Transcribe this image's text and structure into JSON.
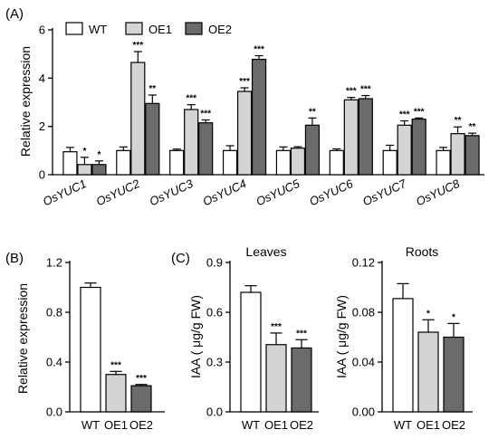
{
  "chart_data": [
    {
      "panel": "(A)",
      "type": "bar",
      "ylabel": "Relative expression",
      "ylim": [
        0,
        6
      ],
      "yticks": [
        "0",
        "2",
        "4",
        "6"
      ],
      "categories": [
        "OsYUC1",
        "OsYUC2",
        "OsYUC3",
        "OsYUC4",
        "OsYUC5",
        "OsYUC6",
        "OsYUC7",
        "OsYUC8"
      ],
      "legend": "top-left",
      "series": [
        {
          "name": "WT",
          "color": "#ffffff",
          "values": [
            0.95,
            1.0,
            1.0,
            1.0,
            1.0,
            1.0,
            1.0,
            1.0
          ],
          "errors": [
            0.18,
            0.15,
            0.06,
            0.2,
            0.15,
            0.07,
            0.22,
            0.13
          ],
          "sig": [
            "",
            "",
            "",
            "",
            "",
            "",
            "",
            ""
          ]
        },
        {
          "name": "OE1",
          "color": "#d4d4d4",
          "values": [
            0.42,
            4.65,
            2.7,
            3.45,
            1.1,
            3.1,
            2.05,
            1.7
          ],
          "errors": [
            0.3,
            0.45,
            0.2,
            0.15,
            0.06,
            0.1,
            0.18,
            0.28
          ],
          "sig": [
            "*",
            "***",
            "***",
            "***",
            "",
            "***",
            "***",
            "**"
          ]
        },
        {
          "name": "OE2",
          "color": "#6b6b6b",
          "values": [
            0.42,
            2.95,
            2.15,
            4.78,
            2.05,
            3.15,
            2.3,
            1.62
          ],
          "errors": [
            0.15,
            0.35,
            0.12,
            0.15,
            0.3,
            0.13,
            0.05,
            0.1
          ],
          "sig": [
            "*",
            "**",
            "***",
            "***",
            "**",
            "***",
            "***",
            "**"
          ]
        }
      ]
    },
    {
      "panel": "(B)",
      "type": "bar",
      "ylabel": "Relative expression",
      "ylim": [
        0,
        1.2
      ],
      "yticks": [
        "0.0",
        "0.4",
        "0.8",
        "1.2"
      ],
      "categories": [
        "WT",
        "OE1",
        "OE2"
      ],
      "values": [
        1.0,
        0.3,
        0.21
      ],
      "errors": [
        0.035,
        0.025,
        0.01
      ],
      "colors": [
        "#ffffff",
        "#d4d4d4",
        "#6b6b6b"
      ],
      "sig": [
        "",
        "***",
        "***"
      ]
    },
    {
      "panel": "(C)",
      "title": "Leaves",
      "type": "bar",
      "ylabel": "IAA ( μg/g FW)",
      "ylim": [
        0,
        0.9
      ],
      "yticks": [
        "0.0",
        "0.3",
        "0.6",
        "0.9"
      ],
      "categories": [
        "WT",
        "OE1",
        "OE2"
      ],
      "values": [
        0.72,
        0.405,
        0.385
      ],
      "errors": [
        0.04,
        0.07,
        0.05
      ],
      "colors": [
        "#ffffff",
        "#d4d4d4",
        "#6b6b6b"
      ],
      "sig": [
        "",
        "***",
        "***"
      ]
    },
    {
      "title": "Roots",
      "type": "bar",
      "ylabel": "IAA ( μg/g FW)",
      "ylim": [
        0,
        0.12
      ],
      "yticks": [
        "0.00",
        "0.04",
        "0.08",
        "0.12"
      ],
      "categories": [
        "WT",
        "OE1",
        "OE2"
      ],
      "values": [
        0.091,
        0.064,
        0.06
      ],
      "errors": [
        0.012,
        0.01,
        0.011
      ],
      "colors": [
        "#ffffff",
        "#d4d4d4",
        "#6b6b6b"
      ],
      "sig": [
        "",
        "*",
        "*"
      ]
    }
  ]
}
